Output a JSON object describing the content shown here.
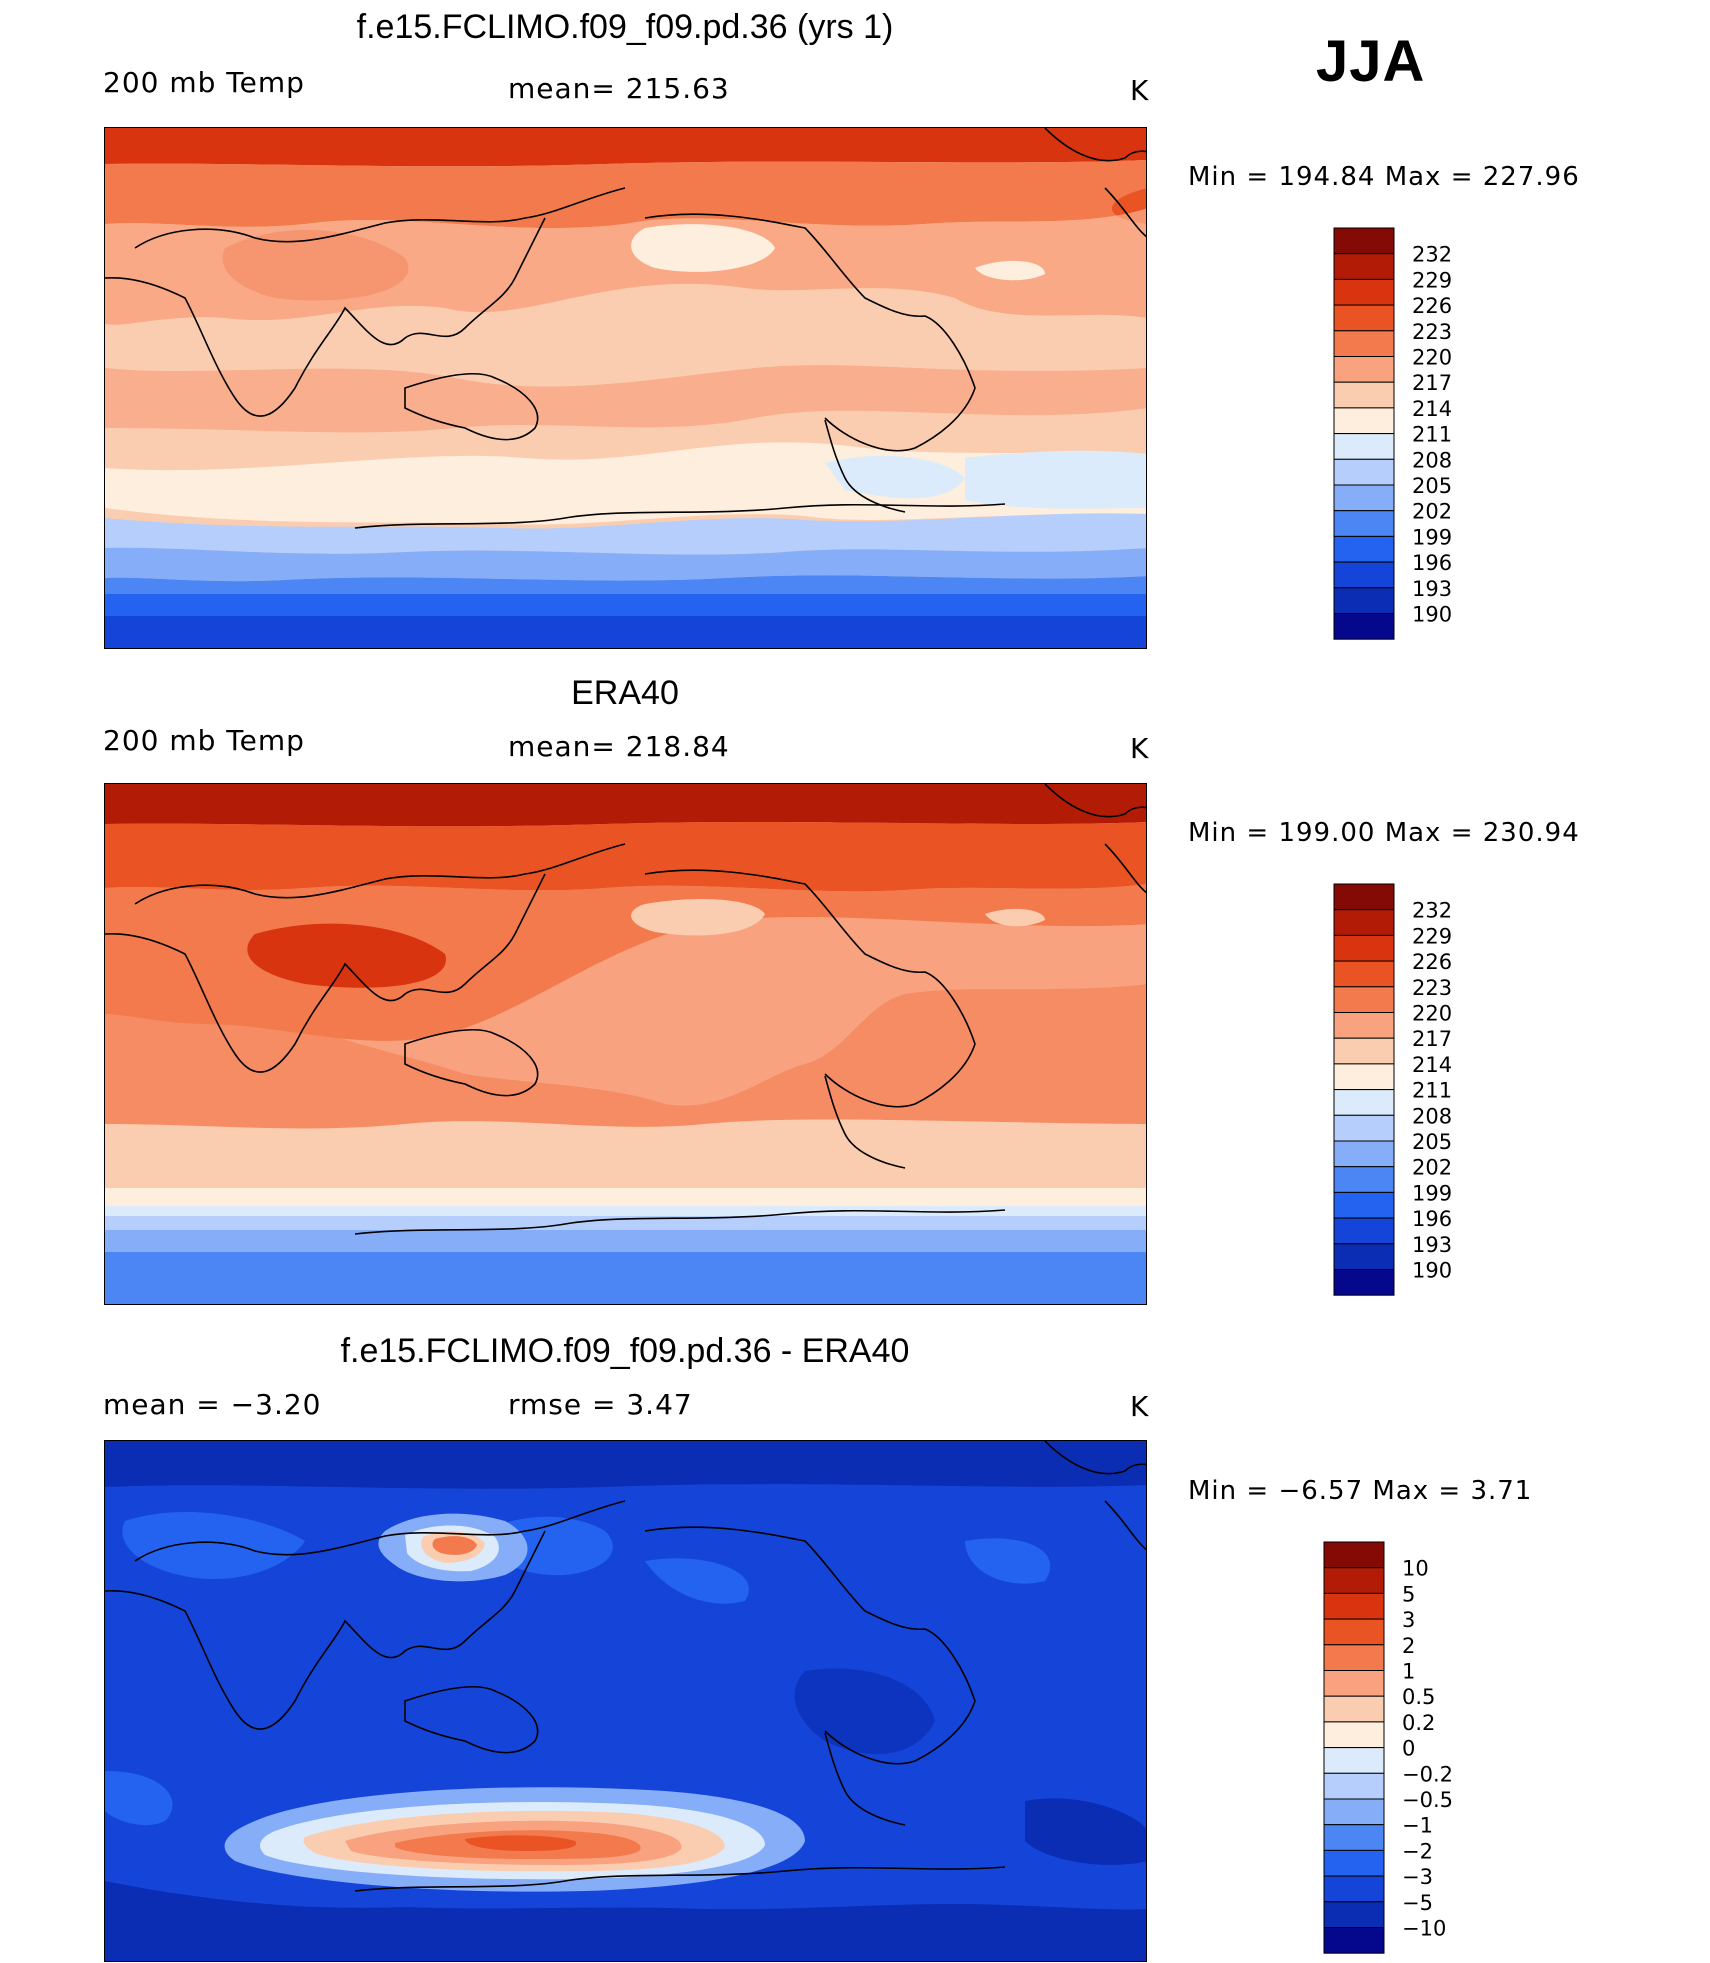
{
  "season": "JJA",
  "colors": {
    "temp": [
      "#05078c",
      "#0a2db4",
      "#1545d8",
      "#2463ef",
      "#4c86f5",
      "#86adf8",
      "#b5cefb",
      "#dcebfb",
      "#fdeedd",
      "#fbcdb0",
      "#f8a27f",
      "#f27a4d",
      "#ea5424",
      "#d83410",
      "#b21c06",
      "#830a05"
    ],
    "diff": [
      "#05078c",
      "#0a2db4",
      "#1545d8",
      "#2463ef",
      "#4c86f5",
      "#86adf8",
      "#b5cefb",
      "#dcebfb",
      "#fdeedd",
      "#fbcdb0",
      "#f8a27f",
      "#f27a4d",
      "#ea5424",
      "#d83410",
      "#b21c06",
      "#830a05"
    ]
  },
  "panels": [
    {
      "title": "f.e15.FCLIMO.f09_f09.pd.36 (yrs 1)",
      "left_label": "200 mb Temp",
      "center_label": "mean=  215.63",
      "units": "K",
      "minmax": "Min  =  194.84  Max  =  227.96",
      "colorbar_labels": [
        "232",
        "229",
        "226",
        "223",
        "220",
        "217",
        "214",
        "211",
        "208",
        "205",
        "202",
        "199",
        "196",
        "193",
        "190"
      ]
    },
    {
      "title": "ERA40",
      "left_label": "200 mb Temp",
      "center_label": "mean=  218.84",
      "units": "K",
      "minmax": "Min  =  199.00  Max  =  230.94",
      "colorbar_labels": [
        "232",
        "229",
        "226",
        "223",
        "220",
        "217",
        "214",
        "211",
        "208",
        "205",
        "202",
        "199",
        "196",
        "193",
        "190"
      ]
    },
    {
      "title": "f.e15.FCLIMO.f09_f09.pd.36 - ERA40",
      "left_label": "mean  =    −3.20",
      "center_label": "rmse  =     3.47",
      "units": "K",
      "minmax": "Min  =    −6.57  Max  =      3.71",
      "colorbar_labels": [
        "10",
        "5",
        "3",
        "2",
        "1",
        "0.5",
        "0.2",
        "0",
        "−0.2",
        "−0.5",
        "−1",
        "−2",
        "−3",
        "−5",
        "−10"
      ]
    }
  ]
}
